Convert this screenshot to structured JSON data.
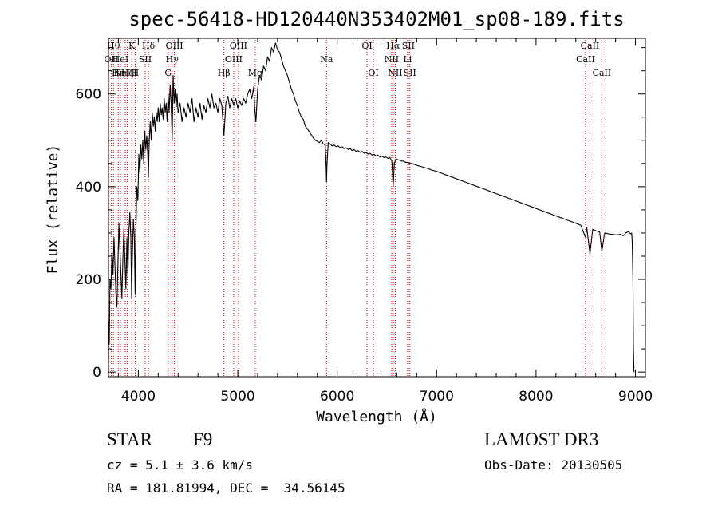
{
  "chart_data": {
    "type": "line",
    "title": "spec-56418-HD120440N353402M01_sp08-189.fits",
    "xlabel": "Wavelength (Å)",
    "ylabel": "Flux (relative)",
    "xlim": [
      3700,
      9100
    ],
    "ylim": [
      -10,
      720
    ],
    "xticks": [
      4000,
      5000,
      6000,
      7000,
      8000,
      9000
    ],
    "yticks": [
      0,
      200,
      400,
      600
    ],
    "grid": false,
    "line_color": "#000000",
    "marker_color": "#cc0000",
    "series": [
      {
        "name": "flux",
        "points": [
          [
            3700,
            5
          ],
          [
            3702,
            110
          ],
          [
            3708,
            60
          ],
          [
            3715,
            200
          ],
          [
            3725,
            180
          ],
          [
            3735,
            260
          ],
          [
            3745,
            210
          ],
          [
            3755,
            290
          ],
          [
            3765,
            230
          ],
          [
            3775,
            170
          ],
          [
            3785,
            140
          ],
          [
            3795,
            230
          ],
          [
            3805,
            320
          ],
          [
            3815,
            265
          ],
          [
            3825,
            210
          ],
          [
            3835,
            160
          ],
          [
            3845,
            250
          ],
          [
            3855,
            310
          ],
          [
            3865,
            240
          ],
          [
            3875,
            180
          ],
          [
            3885,
            290
          ],
          [
            3895,
            205
          ],
          [
            3905,
            300
          ],
          [
            3915,
            345
          ],
          [
            3925,
            290
          ],
          [
            3933,
            160
          ],
          [
            3940,
            250
          ],
          [
            3950,
            330
          ],
          [
            3960,
            290
          ],
          [
            3968,
            170
          ],
          [
            3975,
            300
          ],
          [
            3985,
            400
          ],
          [
            3995,
            370
          ],
          [
            4005,
            470
          ],
          [
            4015,
            430
          ],
          [
            4025,
            490
          ],
          [
            4035,
            460
          ],
          [
            4045,
            500
          ],
          [
            4055,
            450
          ],
          [
            4065,
            520
          ],
          [
            4075,
            480
          ],
          [
            4085,
            510
          ],
          [
            4095,
            470
          ],
          [
            4101,
            420
          ],
          [
            4110,
            500
          ],
          [
            4120,
            540
          ],
          [
            4130,
            500
          ],
          [
            4140,
            560
          ],
          [
            4150,
            530
          ],
          [
            4160,
            550
          ],
          [
            4170,
            520
          ],
          [
            4180,
            560
          ],
          [
            4190,
            540
          ],
          [
            4200,
            570
          ],
          [
            4210,
            540
          ],
          [
            4220,
            580
          ],
          [
            4230,
            555
          ],
          [
            4240,
            570
          ],
          [
            4250,
            545
          ],
          [
            4260,
            590
          ],
          [
            4270,
            560
          ],
          [
            4280,
            580
          ],
          [
            4290,
            540
          ],
          [
            4300,
            600
          ],
          [
            4310,
            560
          ],
          [
            4320,
            620
          ],
          [
            4330,
            580
          ],
          [
            4340,
            500
          ],
          [
            4350,
            640
          ],
          [
            4360,
            580
          ],
          [
            4370,
            610
          ],
          [
            4380,
            570
          ],
          [
            4390,
            600
          ],
          [
            4400,
            560
          ],
          [
            4420,
            580
          ],
          [
            4440,
            540
          ],
          [
            4460,
            570
          ],
          [
            4480,
            550
          ],
          [
            4500,
            580
          ],
          [
            4520,
            560
          ],
          [
            4540,
            590
          ],
          [
            4560,
            540
          ],
          [
            4580,
            570
          ],
          [
            4600,
            550
          ],
          [
            4620,
            580
          ],
          [
            4640,
            545
          ],
          [
            4660,
            575
          ],
          [
            4680,
            560
          ],
          [
            4700,
            590
          ],
          [
            4720,
            570
          ],
          [
            4740,
            600
          ],
          [
            4760,
            570
          ],
          [
            4780,
            580
          ],
          [
            4800,
            560
          ],
          [
            4820,
            590
          ],
          [
            4840,
            575
          ],
          [
            4861,
            510
          ],
          [
            4880,
            580
          ],
          [
            4900,
            595
          ],
          [
            4920,
            570
          ],
          [
            4940,
            590
          ],
          [
            4960,
            575
          ],
          [
            4980,
            590
          ],
          [
            5000,
            570
          ],
          [
            5020,
            585
          ],
          [
            5040,
            575
          ],
          [
            5060,
            590
          ],
          [
            5080,
            580
          ],
          [
            5100,
            600
          ],
          [
            5120,
            610
          ],
          [
            5140,
            590
          ],
          [
            5160,
            615
          ],
          [
            5170,
            570
          ],
          [
            5183,
            540
          ],
          [
            5200,
            610
          ],
          [
            5220,
            640
          ],
          [
            5240,
            630
          ],
          [
            5260,
            660
          ],
          [
            5280,
            650
          ],
          [
            5300,
            680
          ],
          [
            5320,
            670
          ],
          [
            5340,
            700
          ],
          [
            5360,
            690
          ],
          [
            5380,
            710
          ],
          [
            5400,
            695
          ],
          [
            5420,
            690
          ],
          [
            5440,
            675
          ],
          [
            5460,
            660
          ],
          [
            5480,
            650
          ],
          [
            5500,
            640
          ],
          [
            5520,
            625
          ],
          [
            5540,
            610
          ],
          [
            5560,
            600
          ],
          [
            5580,
            585
          ],
          [
            5600,
            575
          ],
          [
            5620,
            560
          ],
          [
            5640,
            550
          ],
          [
            5660,
            545
          ],
          [
            5680,
            530
          ],
          [
            5700,
            525
          ],
          [
            5720,
            518
          ],
          [
            5740,
            512
          ],
          [
            5760,
            505
          ],
          [
            5780,
            500
          ],
          [
            5800,
            498
          ],
          [
            5820,
            495
          ],
          [
            5840,
            500
          ],
          [
            5860,
            492
          ],
          [
            5880,
            490
          ],
          [
            5890,
            440
          ],
          [
            5893,
            410
          ],
          [
            5897,
            445
          ],
          [
            5910,
            495
          ],
          [
            5930,
            492
          ],
          [
            5950,
            488
          ],
          [
            5970,
            490
          ],
          [
            5990,
            486
          ],
          [
            6010,
            488
          ],
          [
            6030,
            484
          ],
          [
            6050,
            486
          ],
          [
            6070,
            482
          ],
          [
            6090,
            484
          ],
          [
            6110,
            480
          ],
          [
            6130,
            482
          ],
          [
            6150,
            478
          ],
          [
            6170,
            480
          ],
          [
            6190,
            476
          ],
          [
            6210,
            478
          ],
          [
            6230,
            474
          ],
          [
            6250,
            476
          ],
          [
            6270,
            472
          ],
          [
            6290,
            474
          ],
          [
            6310,
            470
          ],
          [
            6330,
            472
          ],
          [
            6350,
            468
          ],
          [
            6370,
            470
          ],
          [
            6390,
            466
          ],
          [
            6410,
            468
          ],
          [
            6430,
            464
          ],
          [
            6450,
            466
          ],
          [
            6470,
            463
          ],
          [
            6490,
            464
          ],
          [
            6510,
            461
          ],
          [
            6530,
            463
          ],
          [
            6550,
            455
          ],
          [
            6563,
            400
          ],
          [
            6575,
            450
          ],
          [
            6590,
            460
          ],
          [
            6610,
            458
          ],
          [
            6630,
            457
          ],
          [
            6650,
            455
          ],
          [
            6670,
            455
          ],
          [
            6690,
            452
          ],
          [
            6710,
            453
          ],
          [
            6730,
            450
          ],
          [
            6750,
            450
          ],
          [
            6800,
            446
          ],
          [
            6850,
            443
          ],
          [
            6900,
            440
          ],
          [
            6950,
            436
          ],
          [
            7000,
            433
          ],
          [
            7050,
            429
          ],
          [
            7100,
            425
          ],
          [
            7150,
            421
          ],
          [
            7200,
            417
          ],
          [
            7250,
            413
          ],
          [
            7300,
            409
          ],
          [
            7350,
            405
          ],
          [
            7400,
            401
          ],
          [
            7450,
            397
          ],
          [
            7500,
            393
          ],
          [
            7550,
            389
          ],
          [
            7600,
            385
          ],
          [
            7650,
            381
          ],
          [
            7700,
            377
          ],
          [
            7750,
            373
          ],
          [
            7800,
            369
          ],
          [
            7850,
            365
          ],
          [
            7900,
            361
          ],
          [
            7950,
            357
          ],
          [
            8000,
            353
          ],
          [
            8050,
            349
          ],
          [
            8100,
            345
          ],
          [
            8150,
            341
          ],
          [
            8200,
            337
          ],
          [
            8250,
            333
          ],
          [
            8300,
            329
          ],
          [
            8350,
            325
          ],
          [
            8400,
            321
          ],
          [
            8450,
            317
          ],
          [
            8498,
            290
          ],
          [
            8510,
            312
          ],
          [
            8542,
            255
          ],
          [
            8570,
            308
          ],
          [
            8600,
            305
          ],
          [
            8640,
            302
          ],
          [
            8662,
            260
          ],
          [
            8690,
            300
          ],
          [
            8730,
            298
          ],
          [
            8770,
            297
          ],
          [
            8810,
            296
          ],
          [
            8850,
            297
          ],
          [
            8880,
            294
          ],
          [
            8900,
            300
          ],
          [
            8930,
            303
          ],
          [
            8950,
            298
          ],
          [
            8962,
            300
          ],
          [
            8968,
            280
          ],
          [
            8975,
            200
          ],
          [
            8980,
            50
          ],
          [
            8985,
            0
          ]
        ]
      }
    ],
    "lines": [
      {
        "wl": 3727,
        "label": "OII",
        "row": 2
      },
      {
        "wl": 3750,
        "label": "Hθ",
        "row": 1
      },
      {
        "wl": 3798,
        "label": "Hη",
        "row": 3
      },
      {
        "wl": 3820,
        "label": "HeI",
        "row": 2
      },
      {
        "wl": 3869,
        "label": "NeIII",
        "row": 3
      },
      {
        "wl": 3889,
        "label": "Hζ",
        "row": 3
      },
      {
        "wl": 3934,
        "label": "K",
        "row": 1
      },
      {
        "wl": 3968,
        "label": "H",
        "row": 3
      },
      {
        "wl": 4069,
        "label": "SII",
        "row": 2
      },
      {
        "wl": 4102,
        "label": "Hδ",
        "row": 1
      },
      {
        "wl": 4300,
        "label": "G",
        "row": 3
      },
      {
        "wl": 4340,
        "label": "Hγ",
        "row": 2
      },
      {
        "wl": 4363,
        "label": "OIII",
        "row": 1
      },
      {
        "wl": 4861,
        "label": "Hβ",
        "row": 3
      },
      {
        "wl": 4959,
        "label": "OIII",
        "row": 2
      },
      {
        "wl": 5007,
        "label": "OIII",
        "row": 1
      },
      {
        "wl": 5176,
        "label": "Mg",
        "row": 3
      },
      {
        "wl": 5893,
        "label": "Na",
        "row": 2
      },
      {
        "wl": 6300,
        "label": "OI",
        "row": 1
      },
      {
        "wl": 6364,
        "label": "OI",
        "row": 3
      },
      {
        "wl": 6548,
        "label": "NII",
        "row": 2
      },
      {
        "wl": 6563,
        "label": "Hα",
        "row": 1
      },
      {
        "wl": 6584,
        "label": "NII",
        "row": 3
      },
      {
        "wl": 6708,
        "label": "Li",
        "row": 2
      },
      {
        "wl": 6716,
        "label": "SII",
        "row": 1
      },
      {
        "wl": 6731,
        "label": "SII",
        "row": 3
      },
      {
        "wl": 8498,
        "label": "CaII",
        "row": 2
      },
      {
        "wl": 8542,
        "label": "CaII",
        "row": 1
      },
      {
        "wl": 8662,
        "label": "CaII",
        "row": 3
      }
    ]
  },
  "info": {
    "object": "STAR",
    "subclass": "F9",
    "survey": "LAMOST DR3",
    "cz": "cz = 5.1 ± 3.6 km/s",
    "obs_date": "Obs-Date: 20130505",
    "coords": "RA = 181.81994, DEC =  34.56145"
  }
}
